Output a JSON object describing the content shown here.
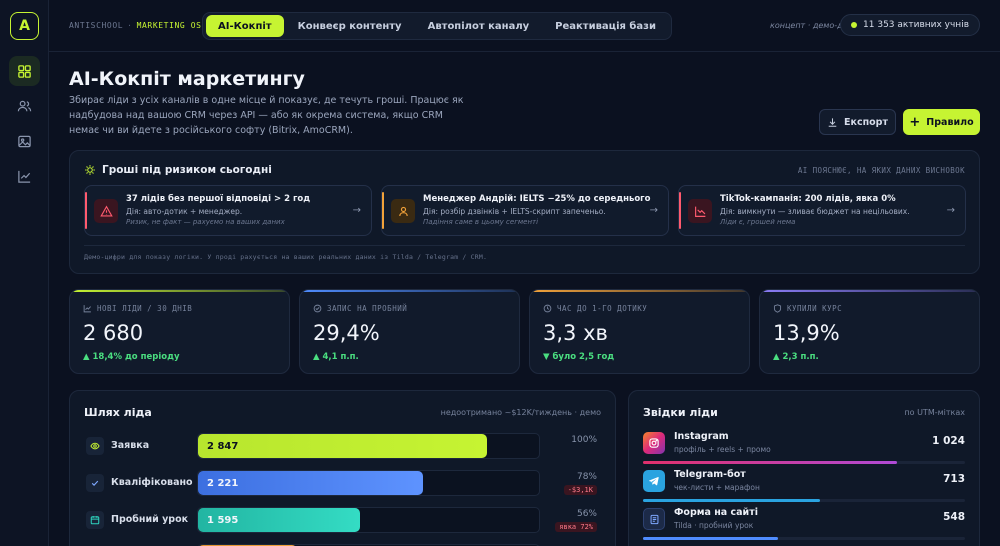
{
  "app": {
    "logo_letter": "A",
    "brand": "ANTISCHOOL",
    "brand_suffix": "MARKETING OS",
    "concept_note": "концепт · демо-дані",
    "active_students": "11 353 активних учнів"
  },
  "nav_tabs": [
    {
      "label": "AI-Кокпіт",
      "active": true
    },
    {
      "label": "Конвеєр контенту",
      "active": false
    },
    {
      "label": "Автопілот каналу",
      "active": false
    },
    {
      "label": "Реактивація бази",
      "active": false
    }
  ],
  "sidebar": {
    "items": [
      {
        "icon": "dashboard-icon",
        "active": true
      },
      {
        "icon": "users-icon",
        "active": false
      },
      {
        "icon": "image-icon",
        "active": false
      },
      {
        "icon": "chart-icon",
        "active": false
      }
    ]
  },
  "header": {
    "title": "AI-Кокпіт маркетингу",
    "subtitle": "Збирає ліди з усіх каналів в одне місце й показує, де течуть гроші. Працює як надбудова над вашою CRM через API — або як окрема система, якщо CRM немає чи ви йдете з російського софту (Bitrix, AmoCRM).",
    "export_label": "Експорт",
    "rule_label": "Правило"
  },
  "risk": {
    "title": "Гроші під ризиком сьогодні",
    "right_note": "AI ПОЯСНЮЄ, НА ЯКИХ ДАНИХ ВИСНОВОК",
    "cards": [
      {
        "title": "37 лідів без першої відповіді > 2 год",
        "action": "Дія: авто-дотик + менеджер.",
        "note": "Ризик, не факт — рахуємо на ваших даних",
        "color": "#ff5a6e",
        "icon": "warning-icon"
      },
      {
        "title": "Менеджер Андрій: IELTS −25% до середнього",
        "action": "Дія: розбір дзвінків + IELTS-скрипт запеченьо.",
        "note": "Падіння саме в цьому сегменті",
        "color": "#f2a23a",
        "icon": "person-icon"
      },
      {
        "title": "TikTok-кампанія: 200 лідів, явка 0%",
        "action": "Дія: вимкнути — зливає бюджет на нецільових.",
        "note": "Ліди є, грошей нема",
        "color": "#ff5a6e",
        "icon": "chart-icon"
      }
    ],
    "footnote": "Демо-цифри для показу логіки. У проді рахується на ваших реальних даних із Tilda / Telegram / CRM."
  },
  "kpis": [
    {
      "label": "НОВІ ЛІДИ / 30 ДНІВ",
      "value": "2 680",
      "delta": "▲ 18,4% до періоду",
      "accent": "#c6f432",
      "delta_color": "#4ade80",
      "icon": "chart-icon"
    },
    {
      "label": "ЗАПИС НА ПРОБНИЙ",
      "value": "29,4%",
      "delta": "▲ 4,1 п.п.",
      "accent": "#4f8cff",
      "delta_color": "#4ade80",
      "icon": "check-circle-icon"
    },
    {
      "label": "ЧАС ДО 1-ГО ДОТИКУ",
      "value": "3,3 хв",
      "delta": "▼ було 2,5 год",
      "accent": "#f2a23a",
      "delta_color": "#4ade80",
      "icon": "clock-icon"
    },
    {
      "label": "КУПИЛИ КУРС",
      "value": "13,9%",
      "delta": "▲ 2,3 п.п.",
      "accent": "#8b7cf6",
      "delta_color": "#4ade80",
      "icon": "shield-icon"
    }
  ],
  "funnel": {
    "title": "Шлях ліда",
    "right_note": "недоотримано ~$12K/тиждень · демо",
    "rows": [
      {
        "name": "Заявка",
        "value": "2 847",
        "fraction": 0.847,
        "pct": "100%",
        "tag": "",
        "color": "#c6f432",
        "icon": "eye-icon"
      },
      {
        "name": "Кваліфіковано",
        "value": "2 221",
        "fraction": 0.66,
        "pct": "78%",
        "tag": "-$3,1K",
        "color": "#4f8cff",
        "icon": "check-icon"
      },
      {
        "name": "Пробний урок",
        "value": "1 595",
        "fraction": 0.475,
        "pct": "56%",
        "tag": "явка 72%",
        "color": "#2dd4bf",
        "icon": "calendar-icon"
      },
      {
        "name": "",
        "value": "",
        "fraction": 0.29,
        "pct": "",
        "tag": "",
        "color": "#f2a23a",
        "icon": ""
      }
    ]
  },
  "sources": {
    "title": "Звідки ліди",
    "right_note": "по UTM-мітках",
    "rows": [
      {
        "name": "Instagram",
        "desc": "профіль + reels + промо",
        "count": "1 024",
        "fraction": 0.79,
        "color": "#e1306c",
        "icon": "instagram-icon"
      },
      {
        "name": "Telegram-бот",
        "desc": "чек-листи + марафон",
        "count": "713",
        "fraction": 0.55,
        "color": "#2aa3e0",
        "icon": "telegram-icon"
      },
      {
        "name": "Форма на сайті",
        "desc": "Tilda · пробний урок",
        "count": "548",
        "fraction": 0.42,
        "color": "#4f8cff",
        "icon": "form-icon"
      }
    ]
  }
}
